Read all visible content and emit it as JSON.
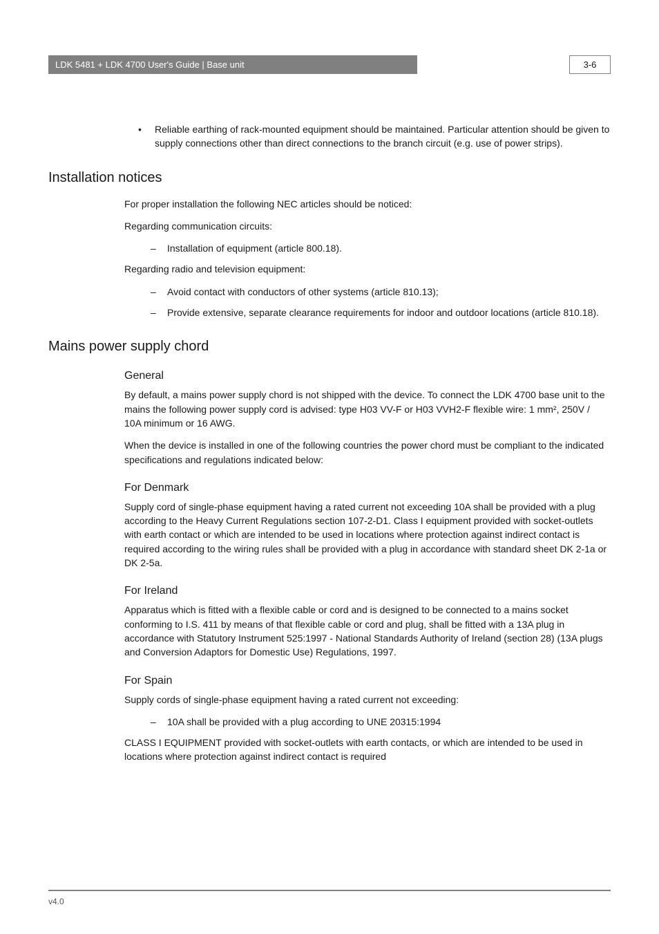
{
  "header": {
    "title": "LDK 5481 + LDK 4700 User's Guide | Base unit",
    "page_number": "3-6"
  },
  "lead_bullet": {
    "mark": "•",
    "text": "Reliable earthing of rack-mounted equipment should be maintained. Particular attention should be given to supply connections other than direct connections to the branch circuit (e.g. use of power strips)."
  },
  "section_installation": {
    "heading": "Installation notices",
    "p1": "For proper installation the following NEC articles should be noticed:",
    "p2": "Regarding communication circuits:",
    "d1": {
      "mark": "–",
      "text": "Installation of equipment (article 800.18)."
    },
    "p3": "Regarding radio and television equipment:",
    "d2": {
      "mark": "–",
      "text": "Avoid contact with conductors of other systems (article 810.13);"
    },
    "d3": {
      "mark": "–",
      "text": "Provide extensive, separate clearance requirements for indoor and outdoor locations (article 810.18)."
    }
  },
  "section_mains": {
    "heading": "Mains power supply chord",
    "general": {
      "heading": "General",
      "p1": "By default, a mains power supply chord is not shipped with the device. To connect the LDK 4700 base unit to the mains the following power supply cord is advised: type H03 VV-F or H03 VVH2-F flexible wire: 1 mm², 250V / 10A minimum or 16 AWG.",
      "p2": "When the device is installed in one of the following countries the power chord must be compliant to the indicated specifications and regulations indicated below:"
    },
    "denmark": {
      "heading": "For Denmark",
      "p1": "Supply cord of single-phase equipment having a rated current not exceeding 10A shall be provided with a plug according to the Heavy Current Regulations section 107-2-D1. Class I equipment provided with socket-outlets with earth contact or which are intended to be used in locations where protection against indirect contact is required according to the wiring rules shall be provided with a plug in accordance with standard sheet DK 2-1a or DK 2-5a."
    },
    "ireland": {
      "heading": "For Ireland",
      "p1": "Apparatus which is fitted with a flexible cable or cord and is designed to be connected to a mains socket conforming to I.S. 411 by means of that flexible cable or cord and plug, shall be fitted with a 13A plug in accordance with Statutory Instrument 525:1997 - National Standards Authority of Ireland (section 28) (13A plugs and Conversion Adaptors for Domestic Use) Regulations, 1997."
    },
    "spain": {
      "heading": "For Spain",
      "p1": "Supply cords of single-phase equipment having a rated current not exceeding:",
      "d1": {
        "mark": "–",
        "text": "10A shall be provided with a plug according to UNE 20315:1994"
      },
      "p2": "CLASS I EQUIPMENT provided with socket-outlets with earth contacts, or which are intended to be used in locations where protection against indirect contact is required"
    }
  },
  "footer": {
    "version": "v4.0"
  }
}
